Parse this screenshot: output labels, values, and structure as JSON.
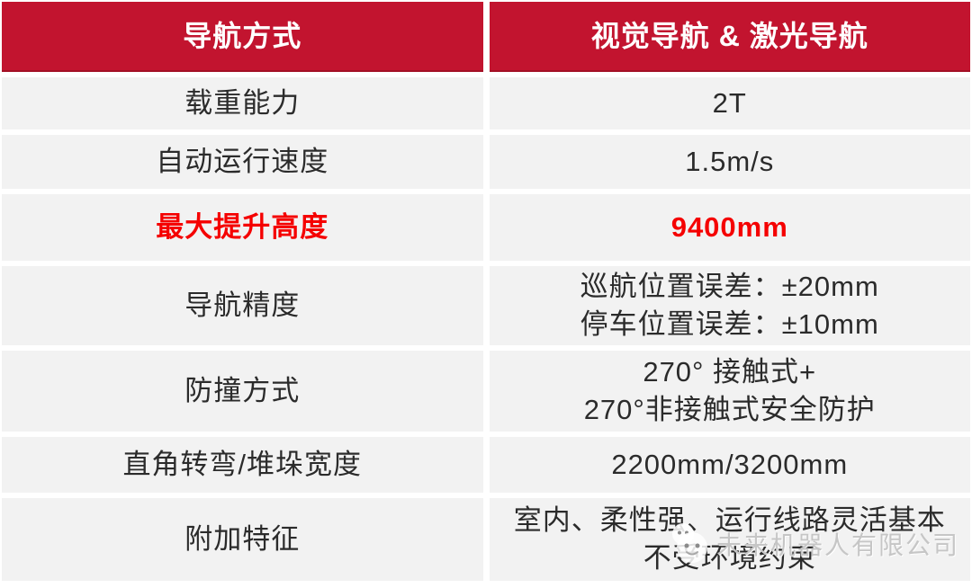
{
  "table": {
    "header": {
      "label": "导航方式",
      "value": "视觉导航 & 激光导航"
    },
    "rows": [
      {
        "label": "载重能力",
        "value_lines": [
          "2T"
        ],
        "highlight": false
      },
      {
        "label": "自动运行速度",
        "value_lines": [
          "1.5m/s"
        ],
        "highlight": false
      },
      {
        "label": "最大提升高度",
        "value_lines": [
          "9400mm"
        ],
        "highlight": true
      },
      {
        "label": "导航精度",
        "value_lines": [
          "巡航位置误差：±20mm",
          "停车位置误差：±10mm"
        ],
        "highlight": false
      },
      {
        "label": "防撞方式",
        "value_lines": [
          "270° 接触式+",
          "270°非接触式安全防护"
        ],
        "highlight": false
      },
      {
        "label": "直角转弯/堆垛宽度",
        "value_lines": [
          "2200mm/3200mm"
        ],
        "highlight": false
      },
      {
        "label": "附加特征",
        "value_lines": [
          "室内、柔性强、运行线路灵活基本",
          "不受环境约束"
        ],
        "highlight": false
      }
    ]
  },
  "watermark": {
    "company": "未来机器人有限公司",
    "logo": "robot-face-icon"
  },
  "colors": {
    "header_red": "#C2142F",
    "highlight_red": "#F50000",
    "row_bg": "#F2F2F2",
    "text": "#2B2B2B",
    "watermark_gray": "#C6C6C6"
  }
}
